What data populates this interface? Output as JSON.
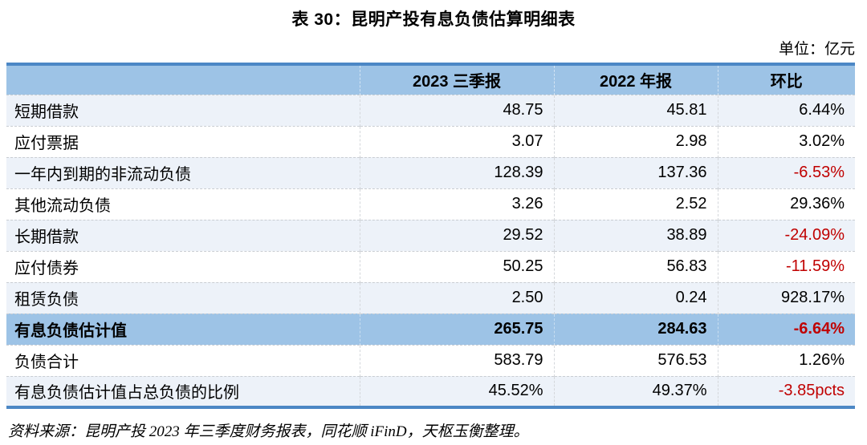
{
  "title": "表 30：昆明产投有息负债估算明细表",
  "unit_label": "单位：亿元",
  "source_note": "资料来源：昆明产投 2023 年三季度财务报表，同花顺 iFinD，天枢玉衡整理。",
  "colors": {
    "header_bg": "#9DC3E6",
    "band_bg": "#EDF2F9",
    "table_border": "#4C87C5",
    "negative": "#C00000",
    "text": "#000000"
  },
  "table": {
    "header": [
      "2023 三季报",
      "2022 年报",
      "环比"
    ],
    "rows": [
      {
        "label": "短期借款",
        "v2023q3": "48.75",
        "v2022": "45.81",
        "chg": "6.44%",
        "chg_negative": false,
        "highlight": false,
        "shade": true
      },
      {
        "label": "应付票据",
        "v2023q3": "3.07",
        "v2022": "2.98",
        "chg": "3.02%",
        "chg_negative": false,
        "highlight": false,
        "shade": false
      },
      {
        "label": "一年内到期的非流动负债",
        "v2023q3": "128.39",
        "v2022": "137.36",
        "chg": "-6.53%",
        "chg_negative": true,
        "highlight": false,
        "shade": true
      },
      {
        "label": "其他流动负债",
        "v2023q3": "3.26",
        "v2022": "2.52",
        "chg": "29.36%",
        "chg_negative": false,
        "highlight": false,
        "shade": false
      },
      {
        "label": "长期借款",
        "v2023q3": "29.52",
        "v2022": "38.89",
        "chg": "-24.09%",
        "chg_negative": true,
        "highlight": false,
        "shade": true
      },
      {
        "label": "应付债券",
        "v2023q3": "50.25",
        "v2022": "56.83",
        "chg": "-11.59%",
        "chg_negative": true,
        "highlight": false,
        "shade": false
      },
      {
        "label": "租赁负债",
        "v2023q3": "2.50",
        "v2022": "0.24",
        "chg": "928.17%",
        "chg_negative": false,
        "highlight": false,
        "shade": true
      },
      {
        "label": "有息负债估计值",
        "v2023q3": "265.75",
        "v2022": "284.63",
        "chg": "-6.64%",
        "chg_negative": true,
        "highlight": true,
        "shade": false
      },
      {
        "label": "负债合计",
        "v2023q3": "583.79",
        "v2022": "576.53",
        "chg": "1.26%",
        "chg_negative": false,
        "highlight": false,
        "shade": false
      },
      {
        "label": "有息负债估计值占总负债的比例",
        "v2023q3": "45.52%",
        "v2022": "49.37%",
        "chg": "-3.85pcts",
        "chg_negative": true,
        "highlight": false,
        "shade": true
      }
    ]
  }
}
